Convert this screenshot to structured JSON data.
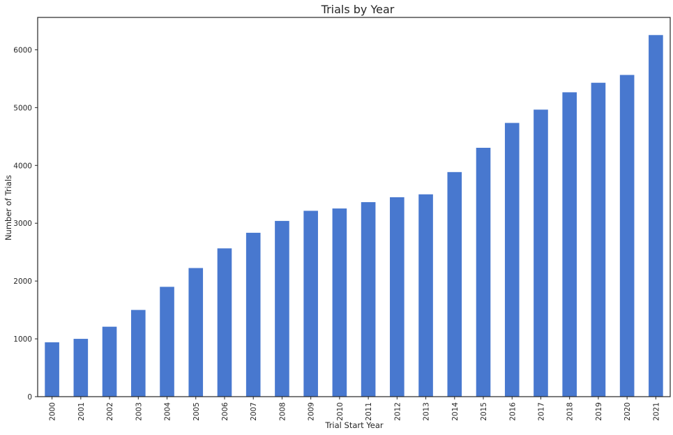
{
  "chart_data": {
    "type": "bar",
    "title": "Trials by Year",
    "xlabel": "Trial Start Year",
    "ylabel": "Number of Trials",
    "categories": [
      "2000",
      "2001",
      "2002",
      "2003",
      "2004",
      "2005",
      "2006",
      "2007",
      "2008",
      "2009",
      "2010",
      "2011",
      "2012",
      "2013",
      "2014",
      "2015",
      "2016",
      "2017",
      "2018",
      "2019",
      "2020",
      "2021"
    ],
    "values": [
      940,
      1000,
      1210,
      1500,
      1900,
      2225,
      2565,
      2835,
      3040,
      3215,
      3255,
      3365,
      3450,
      3500,
      3885,
      4305,
      4735,
      4965,
      5265,
      5430,
      5565,
      6255
    ],
    "ylim": [
      0,
      6560
    ],
    "yticks": [
      0,
      1000,
      2000,
      3000,
      4000,
      5000,
      6000
    ],
    "grid": false,
    "legend": "none",
    "bar_color": "#4878cf"
  }
}
